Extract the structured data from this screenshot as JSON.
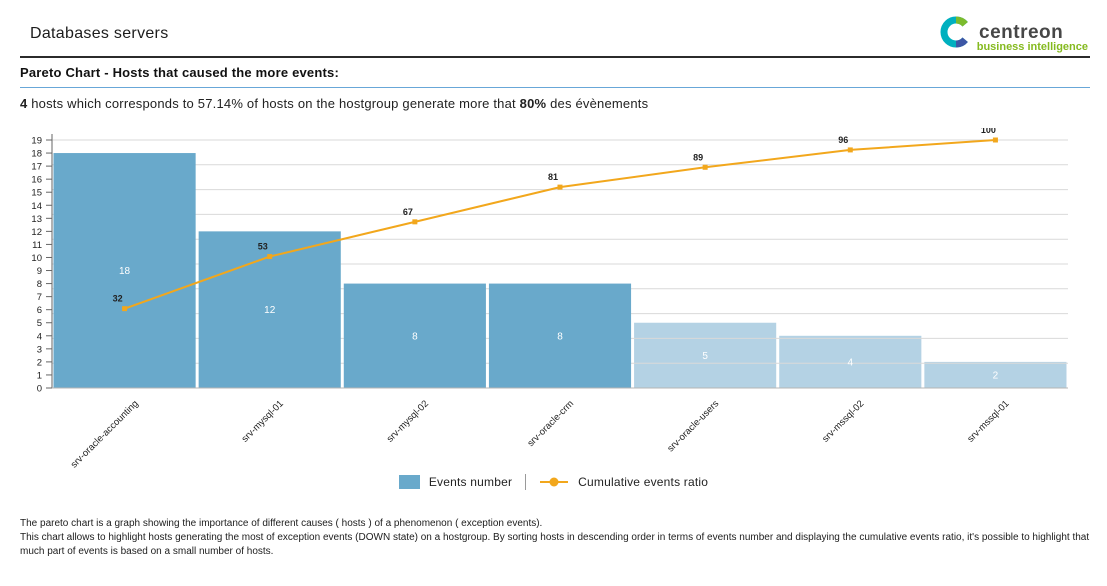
{
  "header": {
    "title": "Databases servers",
    "logo": {
      "name": "centreon",
      "tagline": "business intelligence"
    }
  },
  "section": {
    "title": "Pareto Chart - Hosts that caused the more events:"
  },
  "summary": {
    "bold_count": "4",
    "text_mid": " hosts which corresponds to 57.14% of hosts on the hostgroup generate more that ",
    "bold_pct": "80%",
    "text_end": " des évènements"
  },
  "chart_data": {
    "type": "bar",
    "subtype": "pareto (bar + cumulative line)",
    "categories": [
      "srv-oracle-accounting",
      "srv-mysql-01",
      "srv-mysql-02",
      "srv-oracle-crm",
      "srv-oracle-users",
      "srv-mssql-02",
      "srv-mssql-01"
    ],
    "series": [
      {
        "name": "Events number",
        "type": "bar",
        "values": [
          18,
          12,
          8,
          8,
          5,
          4,
          2
        ]
      },
      {
        "name": "Cumulative events ratio",
        "type": "line",
        "values": [
          32,
          53,
          67,
          81,
          89,
          96,
          100
        ]
      }
    ],
    "title": "",
    "xlabel": "",
    "ylabel": "",
    "ylim_left": [
      0,
      19
    ],
    "ylim_right_percent": [
      0,
      100
    ],
    "y_ticks_left": [
      0,
      1,
      2,
      3,
      4,
      5,
      6,
      7,
      8,
      9,
      10,
      11,
      12,
      13,
      14,
      15,
      16,
      17,
      18,
      19
    ],
    "gridlines_percent": [
      10,
      20,
      30,
      40,
      50,
      60,
      70,
      80,
      90,
      100
    ],
    "light_bars_from_index": 4,
    "legend_position": "bottom",
    "colors": {
      "bar": "#69a9cb",
      "bar_light": "#b4d2e4",
      "line": "#f2a71c",
      "grid": "#d9d9d9",
      "axis": "#666666",
      "bar_label": "#ffffff",
      "cumulative_label": "#222222"
    }
  },
  "footer": {
    "p1": "The pareto chart is a graph showing the importance of different causes ( hosts ) of a phenomenon ( exception events).",
    "p2": "This chart allows to highlight hosts generating the most of exception events (DOWN state) on a hostgroup. By sorting hosts in descending order in terms of events number and displaying the cumulative events ratio, it's possible to highlight that much part of events is based on a small number of hosts."
  }
}
